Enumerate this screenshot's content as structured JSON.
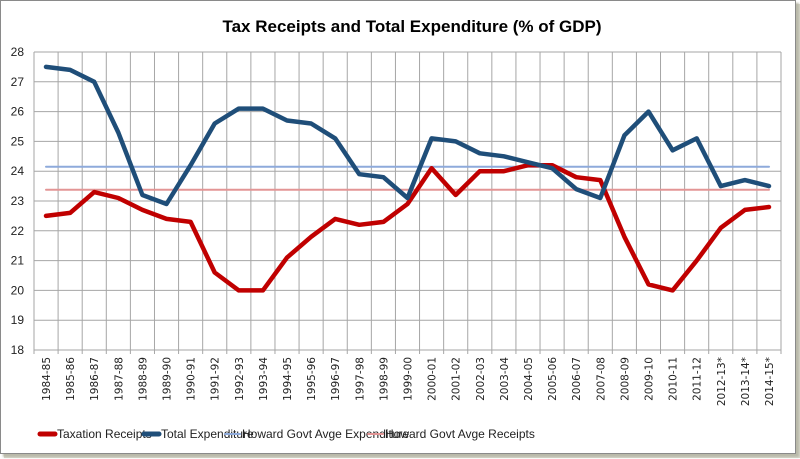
{
  "chart_data": {
    "type": "line",
    "title": "Tax Receipts and Total Expenditure (% of GDP)",
    "xlabel": "",
    "ylabel": "",
    "ylim": [
      18,
      28
    ],
    "yticks": [
      "18",
      "19",
      "20",
      "21",
      "22",
      "23",
      "24",
      "25",
      "26",
      "27",
      "28"
    ],
    "grid": true,
    "legend_position": "bottom",
    "categories": [
      "1984-85",
      "1985-86",
      "1986-87",
      "1987-88",
      "1988-89",
      "1989-90",
      "1990-91",
      "1991-92",
      "1992-93",
      "1993-94",
      "1994-95",
      "1995-96",
      "1996-97",
      "1997-98",
      "1998-99",
      "1999-00",
      "2000-01",
      "2001-02",
      "2002-03",
      "2003-04",
      "2004-05",
      "2005-06",
      "2006-07",
      "2007-08",
      "2008-09",
      "2009-10",
      "2010-11",
      "2011-12",
      "2012-13*",
      "2013-14*",
      "2014-15*"
    ],
    "series": [
      {
        "name": "Taxation Receipts",
        "color": "#c00000",
        "style": "thick",
        "values": [
          22.5,
          22.6,
          23.3,
          23.1,
          22.7,
          22.4,
          22.3,
          20.6,
          20.0,
          20.0,
          21.1,
          21.8,
          22.4,
          22.2,
          22.3,
          22.9,
          24.1,
          23.2,
          24.0,
          24.0,
          24.2,
          24.2,
          23.8,
          23.7,
          21.8,
          20.2,
          20.0,
          21.0,
          22.1,
          22.7,
          22.8
        ]
      },
      {
        "name": "Total Expenditure",
        "color": "#1f4e79",
        "style": "thick",
        "values": [
          27.5,
          27.4,
          27.0,
          25.3,
          23.2,
          22.9,
          24.2,
          25.6,
          26.1,
          26.1,
          25.7,
          25.6,
          25.1,
          23.9,
          23.8,
          23.1,
          25.1,
          25.0,
          24.6,
          24.5,
          24.3,
          24.1,
          23.4,
          23.1,
          25.2,
          26.0,
          24.7,
          25.1,
          23.5,
          23.7,
          23.5
        ]
      },
      {
        "name": "Howard Govt Avge Expenditure",
        "color": "#8eaadb",
        "style": "thin",
        "values": [
          24.15,
          24.15,
          24.15,
          24.15,
          24.15,
          24.15,
          24.15,
          24.15,
          24.15,
          24.15,
          24.15,
          24.15,
          24.15,
          24.15,
          24.15,
          24.15,
          24.15,
          24.15,
          24.15,
          24.15,
          24.15,
          24.15,
          24.15,
          24.15,
          24.15,
          24.15,
          24.15,
          24.15,
          24.15,
          24.15,
          24.15
        ]
      },
      {
        "name": "Howard Govt Avge Receipts",
        "color": "#e39595",
        "style": "thin",
        "values": [
          23.38,
          23.38,
          23.38,
          23.38,
          23.38,
          23.38,
          23.38,
          23.38,
          23.38,
          23.38,
          23.38,
          23.38,
          23.38,
          23.38,
          23.38,
          23.38,
          23.38,
          23.38,
          23.38,
          23.38,
          23.38,
          23.38,
          23.38,
          23.38,
          23.38,
          23.38,
          23.38,
          23.38,
          23.38,
          23.38,
          23.38
        ]
      }
    ]
  },
  "colors": {
    "gridline": "#a6a6a6",
    "axis_text": "#222222"
  }
}
